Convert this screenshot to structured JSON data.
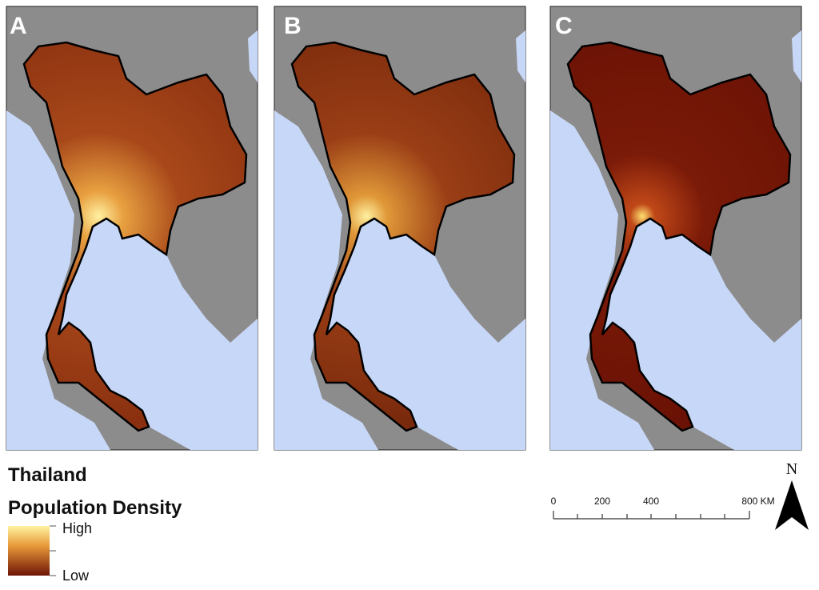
{
  "panels": [
    {
      "label": "A"
    },
    {
      "label": "B"
    },
    {
      "label": "C"
    }
  ],
  "legend": {
    "title": "Thailand",
    "subtitle": "Population Density",
    "high": "High",
    "low": "Low"
  },
  "scale_bar": {
    "labels": [
      "0",
      "200",
      "400",
      "800 KM"
    ]
  },
  "north_arrow": {
    "label": "N"
  }
}
